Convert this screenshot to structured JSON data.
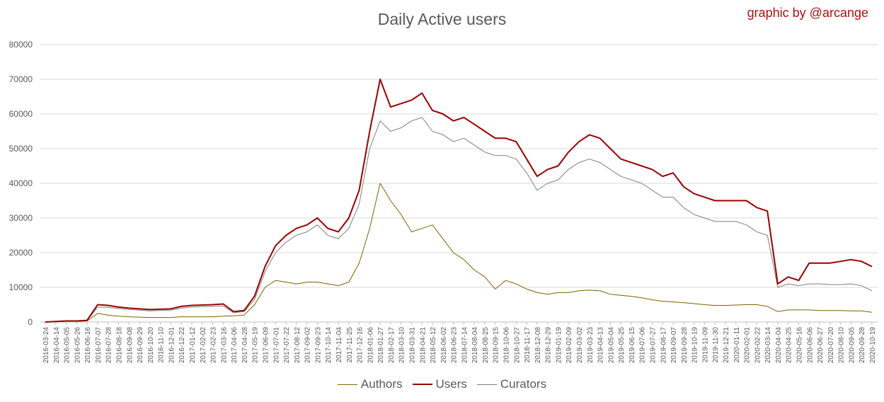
{
  "credit": "graphic by @arcange",
  "chart_data": {
    "type": "line",
    "title": "Daily Active users",
    "xlabel": "",
    "ylabel": "",
    "ylim": [
      0,
      80000
    ],
    "y_ticks": [
      0,
      10000,
      20000,
      30000,
      40000,
      50000,
      60000,
      70000,
      80000
    ],
    "grid": true,
    "legend_position": "bottom",
    "x_tick_labels": [
      "2016-03-24",
      "2016-04-14",
      "2016-05-05",
      "2016-05-26",
      "2016-06-16",
      "2016-07-07",
      "2016-07-28",
      "2016-08-18",
      "2016-09-08",
      "2016-09-29",
      "2016-10-20",
      "2016-11-10",
      "2016-12-01",
      "2016-12-22",
      "2017-01-12",
      "2017-02-02",
      "2017-02-23",
      "2017-03-16",
      "2017-04-06",
      "2017-04-28",
      "2017-05-19",
      "2017-06-09",
      "2017-07-01",
      "2017-07-22",
      "2017-08-12",
      "2017-09-02",
      "2017-09-23",
      "2017-10-14",
      "2017-11-04",
      "2017-11-25",
      "2017-12-16",
      "2018-01-06",
      "2018-01-27",
      "2018-02-17",
      "2018-03-10",
      "2018-03-31",
      "2018-04-21",
      "2018-05-12",
      "2018-06-02",
      "2018-06-23",
      "2018-07-14",
      "2018-08-04",
      "2018-08-25",
      "2018-09-15",
      "2018-10-06",
      "2018-10-27",
      "2018-11-17",
      "2018-12-08",
      "2018-12-29",
      "2019-01-19",
      "2019-02-09",
      "2019-03-02",
      "2019-03-23",
      "2019-04-13",
      "2019-05-04",
      "2019-05-25",
      "2019-06-15",
      "2019-07-06",
      "2019-07-27",
      "2019-08-17",
      "2019-09-07",
      "2019-09-28",
      "2019-10-19",
      "2019-11-09",
      "2019-11-30",
      "2019-12-21",
      "2020-01-11",
      "2020-02-01",
      "2020-02-22",
      "2020-03-14",
      "2020-04-04",
      "2020-04-25",
      "2020-05-16",
      "2020-06-06",
      "2020-06-27",
      "2020-07-20",
      "2020-08-10",
      "2020-09-05",
      "2020-09-28",
      "2020-10-19"
    ],
    "series": [
      {
        "name": "Authors",
        "color": "#7f6000",
        "width": 1,
        "values": [
          0,
          100,
          200,
          200,
          300,
          2500,
          2000,
          1700,
          1500,
          1400,
          1300,
          1300,
          1300,
          1500,
          1500,
          1500,
          1500,
          1700,
          1800,
          2000,
          5000,
          10000,
          12000,
          11500,
          11000,
          11500,
          11500,
          11000,
          10500,
          11500,
          17000,
          27000,
          40000,
          35000,
          31000,
          26000,
          27000,
          28000,
          24000,
          20000,
          18000,
          15000,
          13000,
          9500,
          12000,
          11000,
          9500,
          8500,
          8000,
          8500,
          8500,
          9000,
          9200,
          9000,
          8000,
          7700,
          7400,
          7000,
          6400,
          6000,
          5800,
          5600,
          5300,
          5000,
          4800,
          4800,
          4900,
          5000,
          5000,
          4500,
          3000,
          3500,
          3500,
          3500,
          3300,
          3300,
          3300,
          3200,
          3200,
          2800
        ]
      },
      {
        "name": "Users",
        "color": "#990000",
        "width": 2,
        "values": [
          0,
          150,
          300,
          300,
          500,
          5000,
          4800,
          4300,
          4000,
          3800,
          3600,
          3700,
          3800,
          4500,
          4800,
          4900,
          5000,
          5200,
          3000,
          3300,
          7500,
          16000,
          22000,
          25000,
          27000,
          28000,
          30000,
          27000,
          26000,
          30000,
          38000,
          55000,
          70000,
          62000,
          63000,
          64000,
          66000,
          61000,
          60000,
          58000,
          59000,
          57000,
          55000,
          53000,
          53000,
          52000,
          47000,
          42000,
          44000,
          45000,
          49000,
          52000,
          54000,
          53000,
          50000,
          47000,
          46000,
          45000,
          44000,
          42000,
          43000,
          39000,
          37000,
          36000,
          35000,
          35000,
          35000,
          35000,
          33000,
          32000,
          11000,
          13000,
          12000,
          17000,
          17000,
          17000,
          17500,
          18000,
          17500,
          16000
        ]
      },
      {
        "name": "Curators",
        "color": "#808080",
        "width": 1,
        "values": [
          0,
          100,
          250,
          250,
          400,
          4300,
          4200,
          3900,
          3600,
          3400,
          3200,
          3300,
          3400,
          4000,
          4300,
          4400,
          4500,
          4600,
          2700,
          3000,
          6500,
          14500,
          20000,
          23000,
          25000,
          26000,
          28000,
          25000,
          24000,
          27000,
          34000,
          50000,
          58000,
          55000,
          56000,
          58000,
          59000,
          55000,
          54000,
          52000,
          53000,
          51000,
          49000,
          48000,
          48000,
          47000,
          43000,
          38000,
          40000,
          41000,
          44000,
          46000,
          47000,
          46000,
          44000,
          42000,
          41000,
          40000,
          38000,
          36000,
          36000,
          33000,
          31000,
          30000,
          29000,
          29000,
          29000,
          28000,
          26000,
          25000,
          10000,
          11000,
          10500,
          11000,
          11000,
          10800,
          10800,
          11000,
          10500,
          9000
        ]
      }
    ]
  }
}
